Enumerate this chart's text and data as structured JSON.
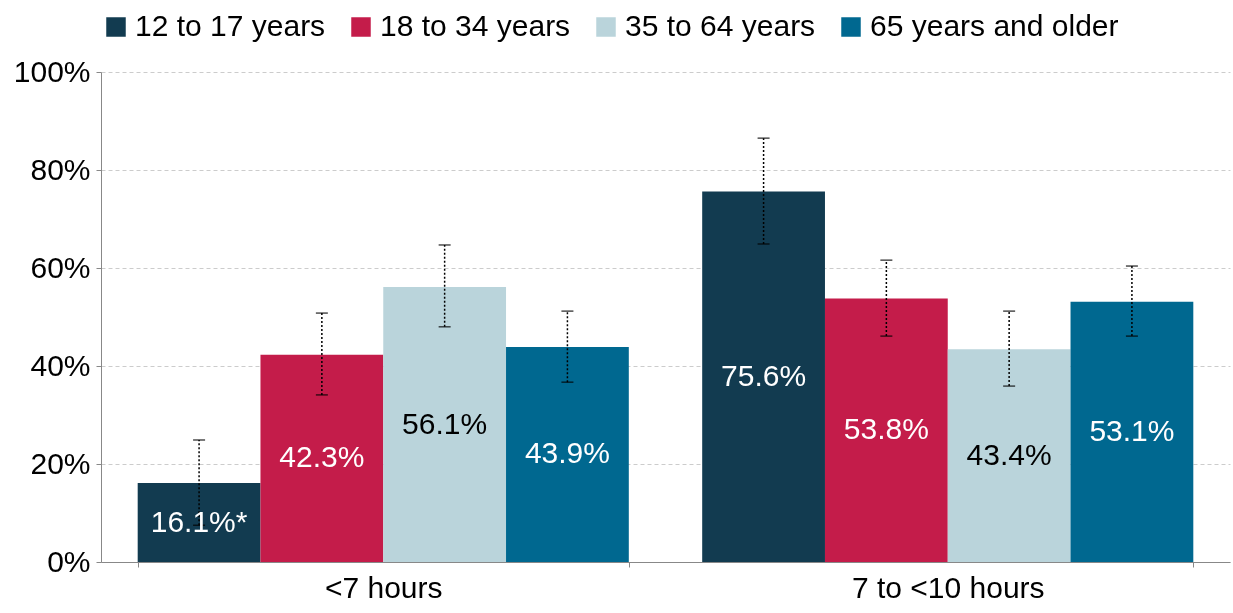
{
  "chart_data": {
    "type": "bar",
    "categories": [
      "<7 hours",
      "7 to <10 hours"
    ],
    "series": [
      {
        "name": "12 to 17 years",
        "color": "#123b50",
        "values": [
          16.1,
          75.6
        ],
        "errors": [
          [
            7.5,
            24.9
          ],
          [
            64.9,
            86.5
          ]
        ],
        "value_labels": [
          "16.1%*",
          "75.6%"
        ]
      },
      {
        "name": "18 to 34 years",
        "color": "#c41c4a",
        "values": [
          42.3,
          53.8
        ],
        "errors": [
          [
            34.1,
            50.8
          ],
          [
            46.1,
            61.6
          ]
        ],
        "value_labels": [
          "42.3%",
          "53.8%"
        ]
      },
      {
        "name": "35 to 64 years",
        "color": "#bad4db",
        "values": [
          56.1,
          43.4
        ],
        "errors": [
          [
            48.0,
            64.7
          ],
          [
            35.9,
            51.2
          ]
        ],
        "value_labels": [
          "56.1%",
          "43.4%"
        ]
      },
      {
        "name": "65 years and older",
        "color": "#006890",
        "values": [
          43.9,
          53.1
        ],
        "errors": [
          [
            36.7,
            51.2
          ],
          [
            46.1,
            60.4
          ]
        ],
        "value_labels": [
          "43.9%",
          "53.1%"
        ]
      }
    ],
    "ylim": [
      0,
      100
    ],
    "yticks": [
      {
        "value": 0,
        "label": "0%"
      },
      {
        "value": 20,
        "label": "20%"
      },
      {
        "value": 40,
        "label": "40%"
      },
      {
        "value": 60,
        "label": "60%"
      },
      {
        "value": 80,
        "label": "80%"
      },
      {
        "value": 100,
        "label": "100%"
      }
    ],
    "grid": "y",
    "legend": "top"
  }
}
